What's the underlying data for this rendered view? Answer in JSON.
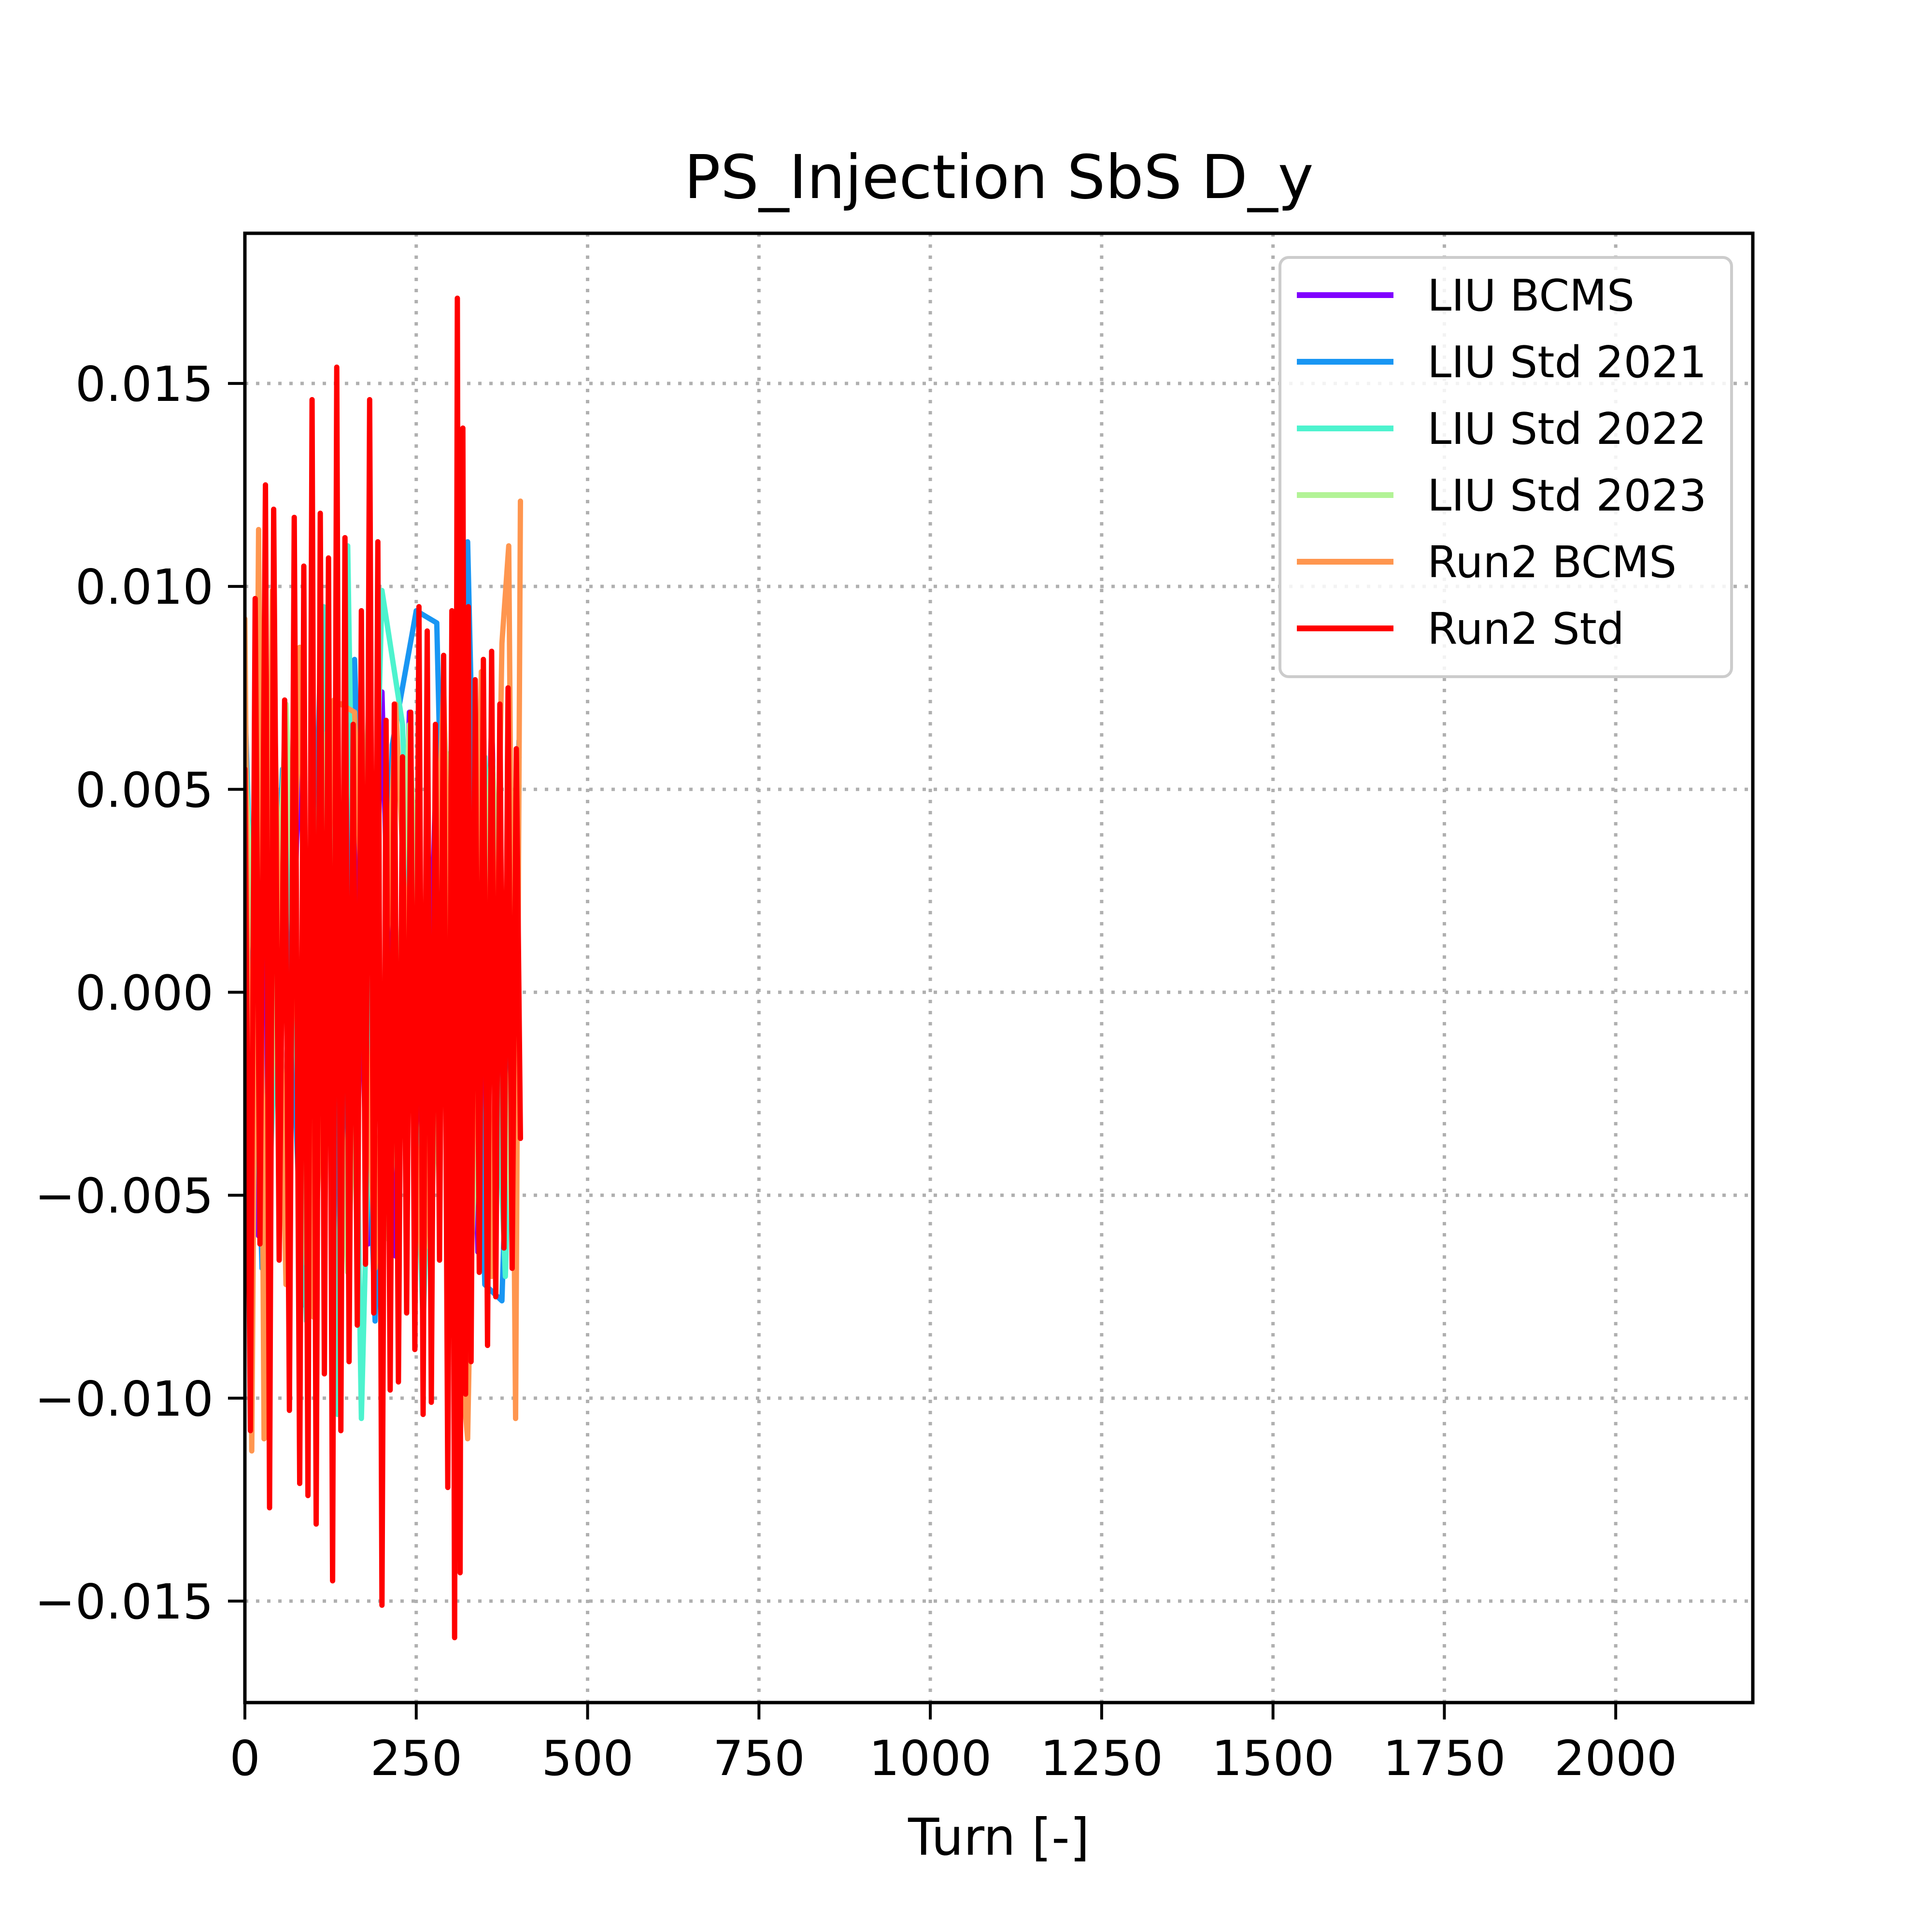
{
  "chart_data": {
    "type": "line",
    "title": "PS_Injection SbS D_y",
    "xlabel": "Turn [-]",
    "ylabel": "",
    "xlim": [
      0,
      2200
    ],
    "ylim": [
      -0.0175,
      0.0187
    ],
    "x_ticks": [
      0,
      250,
      500,
      750,
      1000,
      1250,
      1500,
      1750,
      2000
    ],
    "x_tick_labels": [
      "0",
      "250",
      "500",
      "750",
      "1000",
      "1250",
      "1500",
      "1750",
      "2000"
    ],
    "y_ticks": [
      -0.015,
      -0.01,
      -0.005,
      0.0,
      0.005,
      0.01,
      0.015
    ],
    "y_tick_labels": [
      "−0.015",
      "−0.010",
      "−0.005",
      "0.000",
      "0.005",
      "0.010",
      "0.015"
    ],
    "grid": true,
    "grid_style": "dotted",
    "legend_position": "top-right",
    "series": [
      {
        "name": "LIU BCMS",
        "color": "#8000ff",
        "x": [
          0,
          20,
          40,
          60,
          80,
          100,
          120,
          140,
          160,
          180,
          200,
          220,
          240,
          260,
          280,
          300,
          320,
          340,
          360,
          380,
          400
        ],
        "y": [
          0.0068,
          -0.006,
          0.0072,
          -0.0058,
          0.0065,
          -0.007,
          0.0079,
          -0.0068,
          0.0066,
          -0.0062,
          0.0074,
          -0.0065,
          0.0069,
          -0.0071,
          0.0063,
          -0.0066,
          0.007,
          -0.0064,
          0.0067,
          -0.0069,
          0.0058
        ]
      },
      {
        "name": "LIU Std 2021",
        "color": "#1996f3",
        "x": [
          0,
          25,
          55,
          85,
          110,
          140,
          160,
          190,
          215,
          250,
          280,
          300,
          325,
          350,
          375,
          400
        ],
        "y": [
          0.0072,
          -0.0068,
          0.0055,
          -0.0077,
          0.0081,
          -0.0071,
          0.0082,
          -0.0081,
          0.0061,
          0.0094,
          0.0091,
          -0.0055,
          0.0111,
          -0.0072,
          -0.0076,
          0.0062
        ]
      },
      {
        "name": "LIU Std 2022",
        "color": "#4df3ce",
        "x": [
          0,
          30,
          60,
          90,
          115,
          135,
          150,
          170,
          200,
          230,
          260,
          290,
          320,
          350,
          380,
          400
        ],
        "y": [
          0.0065,
          -0.0072,
          0.0054,
          -0.0081,
          0.0095,
          -0.0104,
          0.011,
          -0.0105,
          0.0099,
          0.0066,
          -0.0082,
          0.0071,
          -0.0065,
          0.0058,
          -0.007,
          0.0051
        ]
      },
      {
        "name": "LIU Std 2023",
        "color": "#b2f396",
        "x": [
          0,
          30,
          60,
          90,
          120,
          150,
          180,
          210,
          240,
          270,
          300,
          330,
          360,
          390,
          400
        ],
        "y": [
          0.0058,
          -0.0062,
          0.0071,
          -0.0067,
          0.0064,
          -0.0069,
          0.0068,
          -0.0061,
          0.0066,
          -0.0063,
          0.0059,
          -0.0066,
          0.0062,
          -0.006,
          0.0055
        ]
      },
      {
        "name": "Run2 BCMS",
        "color": "#ff964f",
        "x": [
          0,
          10,
          20,
          28,
          40,
          60,
          80,
          100,
          130,
          160,
          190,
          220,
          260,
          290,
          310,
          325,
          345,
          360,
          375,
          385,
          395,
          402
        ],
        "y": [
          0.0092,
          -0.0113,
          0.0114,
          -0.011,
          0.0099,
          -0.0072,
          0.0085,
          -0.008,
          0.0072,
          0.0069,
          -0.0068,
          0.0071,
          -0.0074,
          0.0076,
          -0.0081,
          -0.011,
          0.0079,
          -0.007,
          0.0086,
          0.011,
          -0.0105,
          0.0121
        ]
      },
      {
        "name": "Run2 Std",
        "color": "#ff0000",
        "x": [
          0,
          8,
          15,
          22,
          30,
          36,
          42,
          50,
          58,
          65,
          72,
          80,
          86,
          92,
          98,
          104,
          110,
          116,
          122,
          128,
          134,
          140,
          146,
          152,
          158,
          164,
          170,
          176,
          182,
          188,
          194,
          200,
          206,
          212,
          218,
          224,
          230,
          236,
          242,
          248,
          254,
          260,
          266,
          272,
          278,
          284,
          290,
          296,
          302,
          306,
          310,
          314,
          318,
          322,
          326,
          330,
          336,
          342,
          348,
          354,
          360,
          366,
          372,
          378,
          384,
          390,
          396,
          402
        ],
        "y": [
          0.0055,
          -0.0108,
          0.0097,
          -0.0062,
          0.0125,
          -0.0127,
          0.0119,
          -0.0066,
          0.0072,
          -0.0103,
          0.0117,
          -0.0121,
          0.0105,
          -0.0124,
          0.0146,
          -0.0131,
          0.0118,
          -0.0094,
          0.0107,
          -0.0145,
          0.0154,
          -0.0108,
          0.0112,
          -0.0091,
          0.0066,
          -0.0082,
          0.0094,
          -0.0067,
          0.0146,
          -0.0079,
          0.0111,
          -0.0151,
          0.0067,
          -0.0098,
          0.0071,
          -0.0096,
          0.0058,
          -0.0079,
          0.0069,
          -0.0088,
          0.0095,
          -0.0104,
          0.0089,
          -0.0101,
          0.0066,
          -0.0066,
          0.0083,
          -0.0122,
          0.0094,
          -0.0159,
          0.0171,
          -0.0143,
          0.0139,
          -0.0099,
          0.0095,
          -0.0091,
          0.0077,
          -0.0069,
          0.0082,
          -0.0087,
          0.0084,
          -0.0075,
          0.0071,
          -0.0063,
          0.0075,
          -0.0068,
          0.006,
          -0.0036
        ]
      }
    ]
  }
}
